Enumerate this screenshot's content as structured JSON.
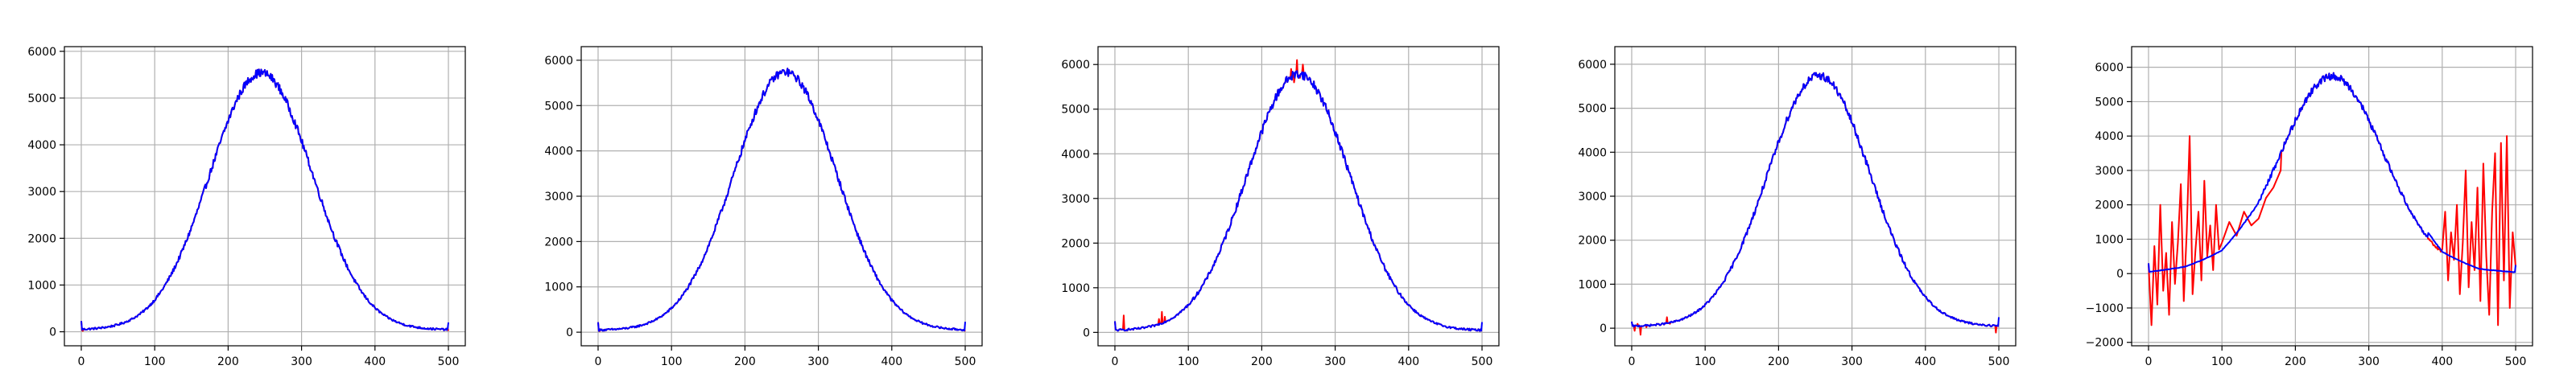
{
  "colors": {
    "observed": "#ff0000",
    "fitted": "#0000ff",
    "grid": "#b0b0b0"
  },
  "chart_data": [
    {
      "type": "line",
      "title": "",
      "xlabel": "",
      "ylabel": "",
      "grid": true,
      "xlim": [
        -23,
        523
      ],
      "ylim": [
        -300,
        6100
      ],
      "xticks": [
        0,
        100,
        200,
        300,
        400,
        500
      ],
      "yticks": [
        0,
        1000,
        2000,
        3000,
        4000,
        5000,
        6000
      ],
      "shape": {
        "peak_x": 245,
        "sigma": 70,
        "peak_height": 5500,
        "noise": 90
      },
      "series": [
        {
          "role": "observed",
          "color": "#ff0000",
          "x": [
            0,
            1,
            2,
            3,
            500,
            501
          ],
          "y": [
            230,
            30,
            20,
            40,
            20,
            200
          ]
        },
        {
          "role": "fitted",
          "color": "#0000ff",
          "x": [
            0,
            1,
            50,
            100,
            150,
            200,
            230,
            245,
            260,
            300,
            350,
            400,
            450,
            499,
            500
          ],
          "y": [
            230,
            30,
            180,
            650,
            1950,
            4250,
            5350,
            5750,
            5550,
            4350,
            2050,
            620,
            130,
            30,
            200
          ]
        }
      ]
    },
    {
      "type": "line",
      "title": "",
      "xlabel": "",
      "ylabel": "",
      "grid": true,
      "xlim": [
        -23,
        523
      ],
      "ylim": [
        -300,
        6300
      ],
      "xticks": [
        0,
        100,
        200,
        300,
        400,
        500
      ],
      "yticks": [
        0,
        1000,
        2000,
        3000,
        4000,
        5000,
        6000
      ],
      "shape": {
        "peak_x": 255,
        "sigma": 70,
        "peak_height": 5700,
        "noise": 90
      },
      "series": [
        {
          "role": "observed",
          "color": "#ff0000",
          "x": [
            0,
            1,
            2,
            500,
            501
          ],
          "y": [
            220,
            30,
            20,
            20,
            230
          ]
        },
        {
          "role": "fitted",
          "color": "#0000ff",
          "x": [
            0,
            1,
            50,
            100,
            150,
            200,
            240,
            255,
            270,
            300,
            350,
            400,
            450,
            499,
            500
          ],
          "y": [
            220,
            30,
            190,
            700,
            2050,
            4350,
            5500,
            5850,
            5650,
            4700,
            2300,
            700,
            150,
            30,
            230
          ]
        }
      ]
    },
    {
      "type": "line",
      "title": "",
      "xlabel": "",
      "ylabel": "",
      "grid": true,
      "xlim": [
        -23,
        523
      ],
      "ylim": [
        -300,
        6400
      ],
      "xticks": [
        0,
        100,
        200,
        300,
        400,
        500
      ],
      "yticks": [
        0,
        1000,
        2000,
        3000,
        4000,
        5000,
        6000
      ],
      "shape": {
        "peak_x": 250,
        "sigma": 70,
        "peak_height": 5750,
        "noise": 100
      },
      "series": [
        {
          "role": "observed",
          "color": "#ff0000",
          "x": [
            0,
            8,
            12,
            16,
            60,
            64,
            68,
            240,
            244,
            248,
            252,
            256,
            500,
            501
          ],
          "y": [
            250,
            60,
            380,
            40,
            300,
            460,
            350,
            5900,
            5600,
            6100,
            5700,
            6000,
            40,
            230
          ]
        },
        {
          "role": "fitted",
          "color": "#0000ff",
          "x": [
            0,
            1,
            50,
            100,
            150,
            200,
            235,
            250,
            265,
            300,
            350,
            400,
            450,
            499,
            500
          ],
          "y": [
            250,
            40,
            230,
            700,
            2050,
            4300,
            5450,
            5800,
            5600,
            4500,
            2200,
            680,
            140,
            30,
            230
          ]
        }
      ]
    },
    {
      "type": "line",
      "title": "",
      "xlabel": "",
      "ylabel": "",
      "grid": true,
      "xlim": [
        -23,
        523
      ],
      "ylim": [
        -400,
        6400
      ],
      "xticks": [
        0,
        100,
        200,
        300,
        400,
        500
      ],
      "yticks": [
        0,
        1000,
        2000,
        3000,
        4000,
        5000,
        6000
      ],
      "shape": {
        "peak_x": 255,
        "sigma": 70,
        "peak_height": 5700,
        "noise": 90
      },
      "series": [
        {
          "role": "observed",
          "color": "#ff0000",
          "x": [
            0,
            4,
            8,
            12,
            16,
            20,
            44,
            48,
            52,
            496,
            500,
            501
          ],
          "y": [
            150,
            -60,
            100,
            -150,
            50,
            20,
            80,
            250,
            100,
            -100,
            50,
            250
          ]
        },
        {
          "role": "fitted",
          "color": "#0000ff",
          "x": [
            0,
            1,
            50,
            100,
            150,
            200,
            240,
            255,
            270,
            300,
            350,
            400,
            450,
            499,
            500
          ],
          "y": [
            150,
            10,
            180,
            680,
            2000,
            4300,
            5450,
            5800,
            5600,
            4600,
            2250,
            680,
            140,
            10,
            250
          ]
        }
      ]
    },
    {
      "type": "line",
      "title": "",
      "xlabel": "",
      "ylabel": "",
      "grid": true,
      "xlim": [
        -23,
        523
      ],
      "ylim": [
        -2100,
        6600
      ],
      "xticks": [
        0,
        100,
        200,
        300,
        400,
        500
      ],
      "yticks": [
        -2000,
        -1000,
        0,
        1000,
        2000,
        3000,
        4000,
        5000,
        6000
      ],
      "shape": {
        "peak_x": 250,
        "sigma": 70,
        "peak_height": 5700,
        "noise": 100
      },
      "series": [
        {
          "role": "observed",
          "color": "#ff0000",
          "x": [
            0,
            4,
            8,
            12,
            16,
            20,
            24,
            28,
            32,
            36,
            40,
            44,
            48,
            52,
            56,
            60,
            64,
            68,
            72,
            76,
            80,
            84,
            88,
            92,
            96,
            100,
            110,
            120,
            130,
            140,
            150,
            160,
            170,
            180,
            400,
            404,
            408,
            412,
            416,
            420,
            424,
            428,
            432,
            436,
            440,
            444,
            448,
            452,
            456,
            460,
            464,
            468,
            472,
            476,
            480,
            484,
            488,
            492,
            496,
            500
          ],
          "y": [
            300,
            -1500,
            800,
            -900,
            2000,
            -500,
            600,
            -1200,
            1500,
            -300,
            900,
            2600,
            -800,
            1200,
            4000,
            -600,
            700,
            1800,
            -200,
            2700,
            500,
            1400,
            100,
            2000,
            700,
            900,
            1500,
            1100,
            1800,
            1400,
            1600,
            2200,
            2500,
            3000,
            700,
            1800,
            -200,
            1200,
            400,
            2000,
            -600,
            900,
            3000,
            -400,
            1500,
            100,
            2500,
            -800,
            3200,
            500,
            -1200,
            1800,
            3500,
            -1500,
            3800,
            -200,
            4000,
            -1000,
            1200,
            200
          ]
        },
        {
          "role": "fitted",
          "color": "#0000ff",
          "x": [
            0,
            1,
            50,
            100,
            150,
            200,
            235,
            250,
            265,
            300,
            350,
            400,
            450,
            499,
            500
          ],
          "y": [
            300,
            50,
            230,
            700,
            2050,
            4300,
            5500,
            5850,
            5650,
            4500,
            2250,
            650,
            140,
            40,
            250
          ]
        }
      ]
    }
  ]
}
